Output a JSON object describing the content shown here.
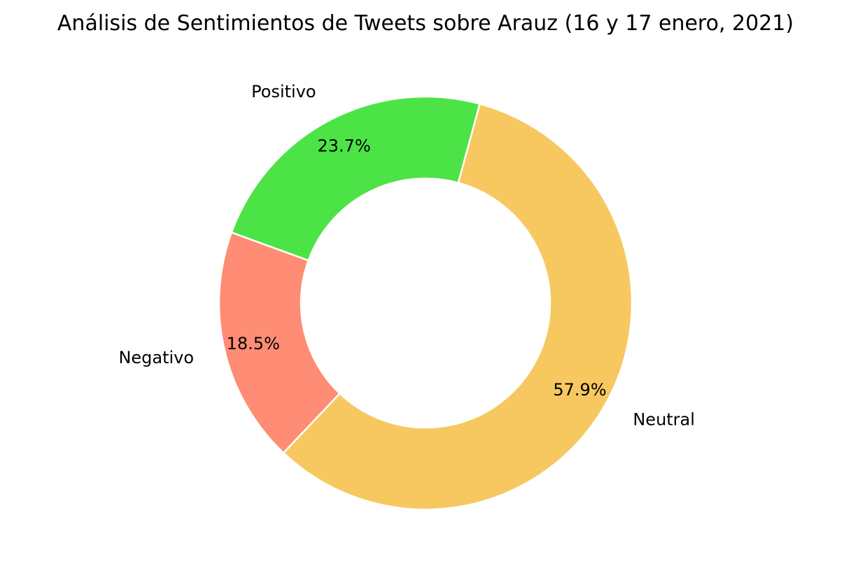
{
  "chart_data": {
    "type": "pie",
    "title": "Análisis de Sentimientos de Tweets sobre Arauz (16 y 17 enero, 2021)",
    "donut": true,
    "start_angle_deg": 160,
    "direction": "counterclockwise",
    "slices": [
      {
        "label": "Negativo",
        "value": 18.5,
        "pct_label": "18.5%",
        "color": "#ff8c74"
      },
      {
        "label": "Neutral",
        "value": 57.9,
        "pct_label": "57.9%",
        "color": "#f6c85f"
      },
      {
        "label": "Positivo",
        "value": 23.7,
        "pct_label": "23.7%",
        "color": "#4ce346"
      }
    ],
    "edge_color": "#ffffff"
  }
}
